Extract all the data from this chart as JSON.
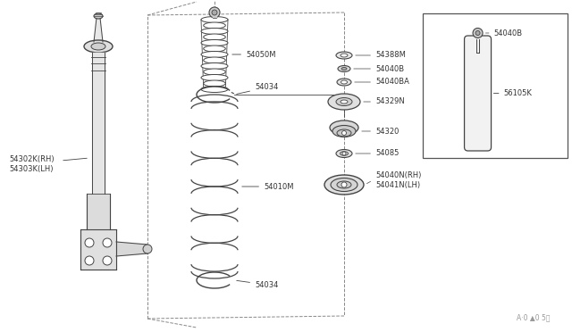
{
  "bg_color": "#ffffff",
  "line_color": "#444444",
  "text_color": "#333333",
  "watermark": "A·0 ▲0 5？",
  "labels": {
    "54302K_LH": "54302K（RH）\n54303K（LH）",
    "54050M": "54050M",
    "54034_top": "54034",
    "54034_bot": "54034",
    "54010M": "54010M",
    "54388M": "54388M",
    "54040B": "54040B",
    "54040BA": "54040BA",
    "54329N": "54329N",
    "54320": "54320",
    "54085": "54085",
    "54040N": "54040N（RH）\n54041N（LH）",
    "54040B_inset": "54040B",
    "56105K": "56105K"
  },
  "strut_label": "54302K(RH)\n54303K(LH)",
  "mount_label": "54040N(RH)\n54041N(LH)"
}
